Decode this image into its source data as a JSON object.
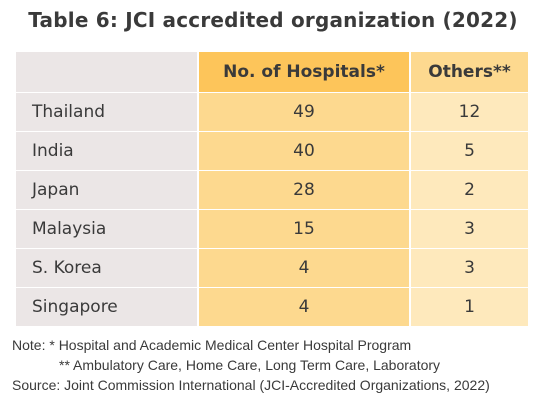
{
  "title": "Table 6: JCI accredited organization  (2022)",
  "table": {
    "headers": [
      "",
      "No. of Hospitals*",
      "Others**"
    ],
    "rows": [
      {
        "country": "Thailand",
        "hospitals": "49",
        "others": "12"
      },
      {
        "country": "India",
        "hospitals": "40",
        "others": "5"
      },
      {
        "country": "Japan",
        "hospitals": "28",
        "others": "2"
      },
      {
        "country": "Malaysia",
        "hospitals": "15",
        "others": "3"
      },
      {
        "country": "S. Korea",
        "hospitals": "4",
        "others": "3"
      },
      {
        "country": "Singapore",
        "hospitals": "4",
        "others": "1"
      }
    ]
  },
  "notes": {
    "note1": "Note: * Hospital and Academic Medical Center Hospital Program",
    "note2": "** Ambulatory Care, Home Care, Long Term Care,  Laboratory",
    "source": "Source: Joint Commission International (JCI-Accredited Organizations, 2022)"
  },
  "colors": {
    "country_column_bg": "#ebe6e6",
    "hospitals_header_bg": "#fdc55a",
    "hospitals_column_bg": "#fdd98f",
    "others_header_bg": "#fdd98f",
    "others_column_bg": "#fee9bc"
  }
}
